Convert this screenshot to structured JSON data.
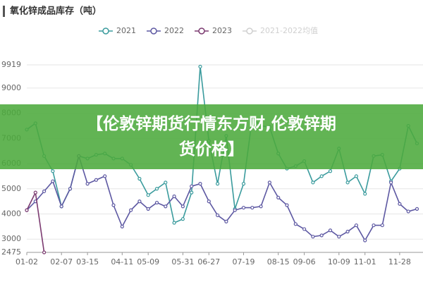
{
  "chart_data": {
    "type": "line",
    "title": "氧化锌成品库存（吨）",
    "categories": [
      "01-02",
      null,
      null,
      null,
      "02-07",
      null,
      null,
      "03-15",
      null,
      null,
      null,
      "04-11",
      null,
      null,
      "05-09",
      null,
      null,
      null,
      "05-31",
      null,
      null,
      "06-27",
      null,
      null,
      null,
      "07-19",
      null,
      null,
      null,
      "08-15",
      null,
      null,
      "09-06",
      null,
      null,
      null,
      "10-09",
      null,
      null,
      "11-01",
      null,
      null,
      null,
      "11-28",
      null,
      null
    ],
    "series": [
      {
        "name": "2021",
        "color": "#3a9b9d",
        "values": [
          7350,
          7600,
          6300,
          5700,
          4300,
          5000,
          6300,
          6200,
          6350,
          6400,
          6200,
          6200,
          5950,
          5400,
          4750,
          5000,
          5250,
          3650,
          3800,
          4850,
          9850,
          6900,
          5200,
          7100,
          4200,
          5200,
          7800,
          7500,
          7450,
          6400,
          5800,
          5900,
          6100,
          5250,
          5500,
          5700,
          6600,
          5250,
          5500,
          4800,
          6300,
          6350,
          5300,
          5800,
          7500,
          6800
        ]
      },
      {
        "name": "2022",
        "color": "#5d58a2",
        "values": [
          4150,
          4500,
          4900,
          5300,
          4300,
          5000,
          6300,
          5200,
          5350,
          5500,
          4350,
          3500,
          4150,
          4500,
          4200,
          4450,
          4300,
          4700,
          4300,
          5100,
          5200,
          4500,
          3950,
          3700,
          4150,
          4250,
          4250,
          4300,
          5250,
          4650,
          4350,
          3600,
          3400,
          3100,
          3150,
          3350,
          3100,
          3300,
          3550,
          2950,
          3550,
          3550,
          5250,
          4400,
          4100,
          4200
        ]
      },
      {
        "name": "2023",
        "color": "#7b3a70",
        "values": [
          4150,
          4850,
          2475,
          null,
          null,
          null,
          null,
          null,
          null,
          null,
          null,
          null,
          null,
          null,
          null,
          null,
          null,
          null,
          null,
          null,
          null,
          null,
          null,
          null,
          null,
          null,
          null,
          null,
          null,
          null,
          null,
          null,
          null,
          null,
          null,
          null,
          null,
          null,
          null,
          null,
          null,
          null,
          null,
          null,
          null,
          null
        ]
      }
    ],
    "inactive_legend": {
      "name": "2021-2022均值",
      "color": "#d0d0d0"
    },
    "ylim": [
      2475,
      9919
    ],
    "yticks": [
      2475,
      3000,
      4000,
      5000,
      6000,
      7000,
      8000,
      9000,
      9919
    ],
    "grid": true
  },
  "banner": {
    "line1": "【伦敦锌期货行情东方财,伦敦锌期",
    "line2": "货价格】"
  }
}
